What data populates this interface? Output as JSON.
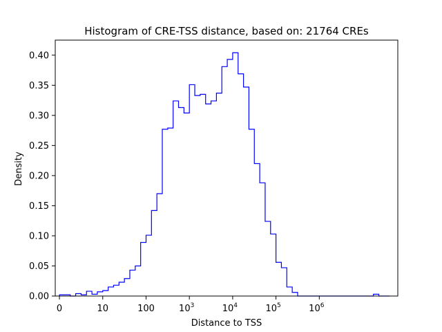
{
  "chart_data": {
    "type": "histogram",
    "title": "Histogram of CRE-TSS distance, based on: 21764 CREs",
    "xlabel": "Distance to TSS",
    "ylabel": "Density",
    "x_scale": "log",
    "xlim": [
      0.8,
      65000000
    ],
    "ylim": [
      0,
      0.425
    ],
    "grid": false,
    "legend": "none",
    "line_color": "#0000ff",
    "x_ticks": [
      {
        "value": 1,
        "label": "0"
      },
      {
        "value": 10,
        "label": "10"
      },
      {
        "value": 100,
        "label": "100"
      },
      {
        "value": 1000,
        "base": "10",
        "exp": "3"
      },
      {
        "value": 10000,
        "base": "10",
        "exp": "4"
      },
      {
        "value": 100000,
        "base": "10",
        "exp": "5"
      },
      {
        "value": 1000000,
        "base": "10",
        "exp": "6"
      }
    ],
    "y_ticks": [
      {
        "value": 0.0,
        "label": "0.00"
      },
      {
        "value": 0.05,
        "label": "0.05"
      },
      {
        "value": 0.1,
        "label": "0.10"
      },
      {
        "value": 0.15,
        "label": "0.15"
      },
      {
        "value": 0.2,
        "label": "0.20"
      },
      {
        "value": 0.25,
        "label": "0.25"
      },
      {
        "value": 0.3,
        "label": "0.30"
      },
      {
        "value": 0.35,
        "label": "0.35"
      },
      {
        "value": 0.4,
        "label": "0.40"
      }
    ],
    "bin_edges": [
      1,
      1.3335,
      1.7783,
      2.3714,
      3.1623,
      4.217,
      5.6234,
      7.4989,
      10,
      13.335,
      17.783,
      23.714,
      31.623,
      42.17,
      56.234,
      74.989,
      100,
      133.35,
      177.83,
      237.14,
      316.23,
      421.7,
      562.34,
      749.89,
      1000,
      1333.5,
      1778.3,
      2371.4,
      3162.3,
      4217,
      5623.4,
      7498.9,
      10000,
      13335,
      17783,
      23714,
      31623,
      42170,
      56234,
      74989,
      100000,
      133350,
      177830,
      237140,
      316230,
      421700,
      562340,
      749890,
      1000000,
      1333500,
      1778300,
      2371400,
      3162300,
      4217000,
      5623400,
      7498900,
      10000000,
      13335000,
      17783000,
      23714000,
      31623000,
      42170000
    ],
    "density": [
      0.002,
      0.002,
      0.0,
      0.004,
      0.002,
      0.008,
      0.003,
      0.007,
      0.009,
      0.015,
      0.018,
      0.023,
      0.029,
      0.043,
      0.05,
      0.089,
      0.101,
      0.142,
      0.17,
      0.277,
      0.279,
      0.324,
      0.313,
      0.304,
      0.351,
      0.333,
      0.335,
      0.319,
      0.324,
      0.337,
      0.381,
      0.393,
      0.404,
      0.369,
      0.347,
      0.277,
      0.22,
      0.188,
      0.124,
      0.103,
      0.056,
      0.047,
      0.015,
      0.006,
      0.0,
      0.0,
      0.0,
      0.0,
      0.0,
      0.0,
      0.0,
      0.0,
      0.0,
      0.0,
      0.0,
      0.0,
      0.0,
      0.0,
      0.003,
      0.0,
      0.0
    ]
  }
}
